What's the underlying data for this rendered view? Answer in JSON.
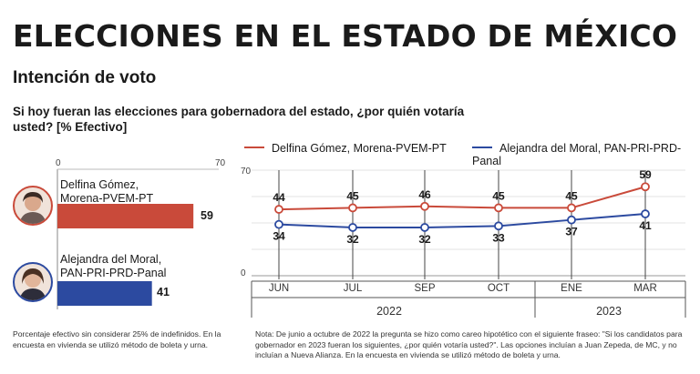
{
  "header": {
    "title": "ELECCIONES EN EL ESTADO DE MÉXICO",
    "subtitle": "Intención de voto",
    "question": "Si hoy fueran las elecciones para gobernadora del estado, ¿por quién votaría usted? [% Efectivo]"
  },
  "colors": {
    "red": "#c94a3a",
    "blue": "#2c4aa0"
  },
  "bars": {
    "axis_min": "0",
    "axis_max": "70",
    "items": [
      {
        "name": "Delfina Gómez, Morena-PVEM-PT",
        "line1": "Delfina Gómez,",
        "line2": "Morena-PVEM-PT",
        "value": 59,
        "label": "59"
      },
      {
        "name": "Alejandra del Moral, PAN-PRI-PRD-Panal",
        "line1": "Alejandra del Moral,",
        "line2": "PAN-PRI-PRD-Panal",
        "value": 41,
        "label": "41"
      }
    ]
  },
  "legend": {
    "red": "Delfina Gómez, Morena-PVEM-PT",
    "blue": "Alejandra del Moral, PAN-PRI-PRD-Panal"
  },
  "chart_data": [
    {
      "type": "bar",
      "categories": [
        "Delfina Gómez, Morena-PVEM-PT",
        "Alejandra del Moral, PAN-PRI-PRD-Panal"
      ],
      "values": [
        59,
        41
      ],
      "xlim": [
        0,
        70
      ]
    },
    {
      "type": "line",
      "categories": [
        "JUN",
        "JUL",
        "SEP",
        "OCT",
        "ENE",
        "MAR"
      ],
      "year_groups": [
        {
          "label": "2022",
          "months": [
            "JUN",
            "JUL",
            "SEP",
            "OCT"
          ]
        },
        {
          "label": "2023",
          "months": [
            "ENE",
            "MAR"
          ]
        }
      ],
      "series": [
        {
          "name": "Delfina Gómez, Morena-PVEM-PT",
          "values": [
            44,
            45,
            46,
            45,
            45,
            59
          ]
        },
        {
          "name": "Alejandra del Moral, PAN-PRI-PRD-Panal",
          "values": [
            34,
            32,
            32,
            33,
            37,
            41
          ]
        }
      ],
      "ylim": [
        0,
        70
      ],
      "y_ticks": [
        "0",
        "70"
      ],
      "legend_position": "top"
    }
  ],
  "notes": {
    "left": "Porcentaje efectivo sin considerar 25% de indefinidos. En la encuesta en vivienda se utilizó método de boleta y urna.",
    "right": "Nota: De junio a octubre de 2022 la pregunta se hizo como careo hipotético con el siguiente fraseo: \"Si los candidatos para gobernador en 2023 fueran los siguientes, ¿por quién votaría usted?\". Las opciones incluían a Juan Zepeda, de MC, y no incluían a Nueva Alianza. En la encuesta en vivienda se utilizó método de boleta y urna."
  }
}
